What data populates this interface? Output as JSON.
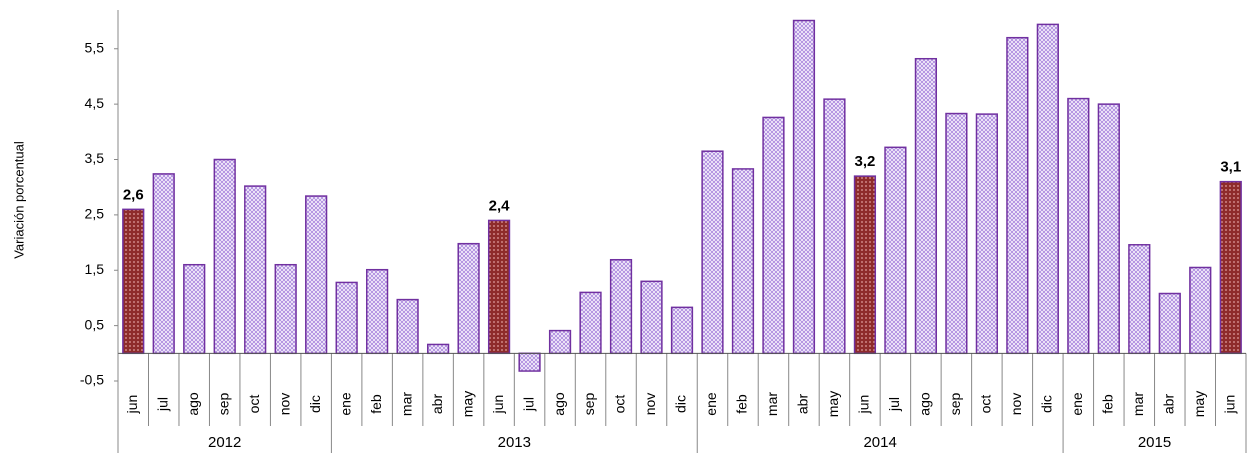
{
  "chart_data": {
    "type": "bar",
    "y_axis_label": "Variación porcentual",
    "categories": [
      "jun",
      "jul",
      "ago",
      "sep",
      "oct",
      "nov",
      "dic",
      "ene",
      "feb",
      "mar",
      "abr",
      "may",
      "jun",
      "jul",
      "ago",
      "sep",
      "oct",
      "nov",
      "dic",
      "ene",
      "feb",
      "mar",
      "abr",
      "may",
      "jun",
      "jul",
      "ago",
      "sep",
      "oct",
      "nov",
      "dic",
      "ene",
      "feb",
      "mar",
      "abr",
      "may",
      "jun"
    ],
    "values": [
      2.6,
      3.24,
      1.6,
      3.5,
      3.02,
      1.6,
      2.84,
      1.28,
      1.51,
      0.97,
      0.16,
      1.98,
      2.4,
      -0.32,
      0.41,
      1.1,
      1.69,
      1.3,
      0.83,
      3.65,
      3.33,
      4.26,
      6.01,
      4.59,
      3.2,
      3.72,
      5.32,
      4.33,
      4.32,
      5.7,
      5.94,
      4.6,
      4.5,
      1.96,
      1.08,
      1.55,
      3.1
    ],
    "value_labels": [
      "2,6",
      null,
      null,
      null,
      null,
      null,
      null,
      null,
      null,
      null,
      null,
      null,
      "2,4",
      null,
      null,
      null,
      null,
      null,
      null,
      null,
      null,
      null,
      null,
      null,
      "3,2",
      null,
      null,
      null,
      null,
      null,
      null,
      null,
      null,
      null,
      null,
      null,
      "3,1"
    ],
    "years": [
      {
        "name": "2012",
        "span": 7
      },
      {
        "name": "2013",
        "span": 12
      },
      {
        "name": "2014",
        "span": 12
      },
      {
        "name": "2015",
        "span": 6
      }
    ],
    "color": "#c7a9ee",
    "highlight_color": "#8e2b2b",
    "edge_color": "#7030a0",
    "ylim": [
      -0.5,
      6.2
    ],
    "yticks": [
      {
        "value": -0.5,
        "label": "-0,5"
      },
      {
        "value": 0.5,
        "label": "0,5"
      },
      {
        "value": 1.5,
        "label": "1,5"
      },
      {
        "value": 2.5,
        "label": "2,5"
      },
      {
        "value": 3.5,
        "label": "3,5"
      },
      {
        "value": 4.5,
        "label": "4,5"
      },
      {
        "value": 5.5,
        "label": "5,5"
      }
    ],
    "grid": false
  }
}
